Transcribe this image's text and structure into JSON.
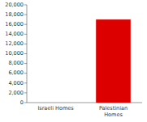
{
  "chart_data": {
    "type": "bar",
    "categories": [
      "Israeli Homes",
      "Palestinian\nHomes"
    ],
    "values": [
      1,
      17000
    ],
    "colors": [
      "#4444ff",
      "#dd0000"
    ],
    "ylim": [
      0,
      20000
    ],
    "yticks": [
      0,
      {
        "value": 2000,
        "label": "2,000"
      },
      {
        "value": 4000,
        "label": "4,000"
      },
      {
        "value": 6000,
        "label": "6,000"
      },
      {
        "value": 8000,
        "label": "8,000"
      },
      {
        "value": 10000,
        "label": "10,000"
      },
      {
        "value": 12000,
        "label": "12,000"
      },
      {
        "value": 14000,
        "label": "14,000"
      },
      {
        "value": 16000,
        "label": "16,000"
      },
      {
        "value": 18000,
        "label": "18,000"
      },
      {
        "value": 20000,
        "label": "20,000"
      }
    ],
    "grid": false
  }
}
